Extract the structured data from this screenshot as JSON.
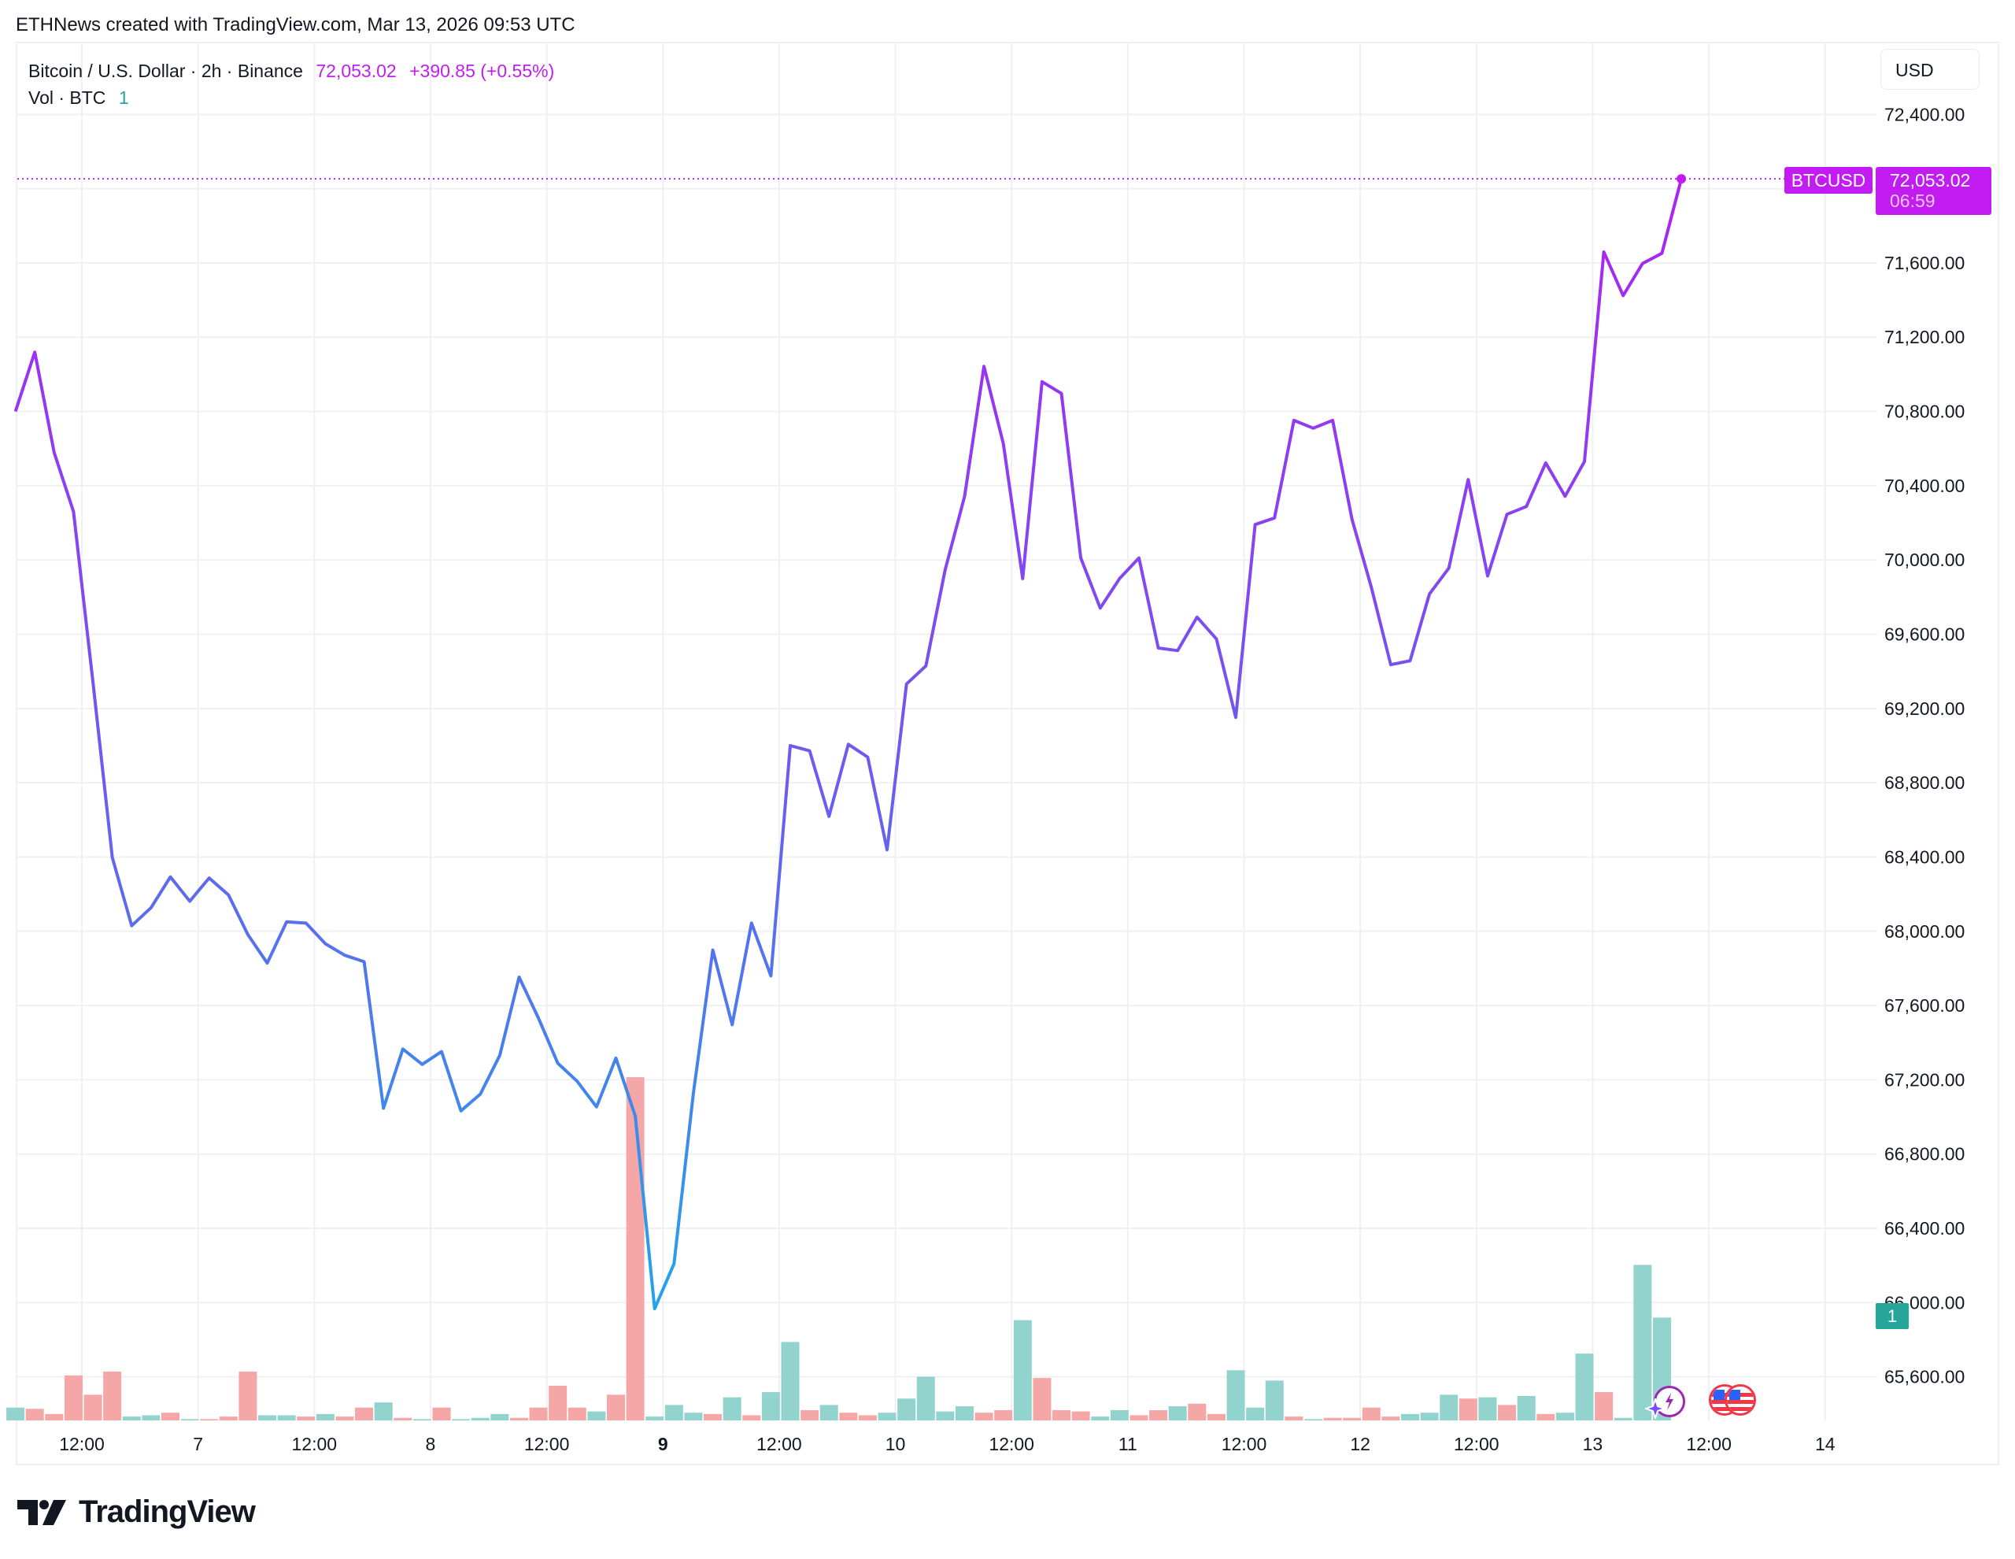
{
  "credit": "ETHNews created with TradingView.com, Mar 13, 2026 09:53 UTC",
  "legend": {
    "symbol": "Bitcoin / U.S. Dollar · 2h · Binance",
    "last": "72,053.02",
    "change": "+390.85 (+0.55%)",
    "volume_label": "Vol · BTC",
    "volume_value": "1"
  },
  "price_axis": {
    "currency_button": "USD",
    "ticks": [
      "72,400.00",
      "71,600.00",
      "71,200.00",
      "70,800.00",
      "70,400.00",
      "70,000.00",
      "69,600.00",
      "69,200.00",
      "68,800.00",
      "68,400.00",
      "68,000.00",
      "67,600.00",
      "67,200.00",
      "66,800.00",
      "66,400.00",
      "66,000.00",
      "65,600.00"
    ],
    "tick_values": [
      72400,
      71600,
      71200,
      70800,
      70400,
      70000,
      69600,
      69200,
      68800,
      68400,
      68000,
      67600,
      67200,
      66800,
      66400,
      66000,
      65600
    ]
  },
  "price_tag": {
    "symbol": "BTCUSD",
    "price": "72,053.02",
    "countdown": "06:59"
  },
  "volume_badge": "1",
  "time_axis": {
    "labels": [
      "12:00",
      "7",
      "12:00",
      "8",
      "12:00",
      "9",
      "12:00",
      "10",
      "12:00",
      "11",
      "12:00",
      "12",
      "12:00",
      "13",
      "12:00",
      "14"
    ],
    "bold": [
      "9"
    ]
  },
  "events": [
    "ai-insight-icon",
    "us-flag-event-icon",
    "us-flag-event-icon"
  ],
  "brand": "TradingView",
  "colors": {
    "line_start": "#b31cf2",
    "line_mid": "#1fa8e8",
    "accent": "#c21cf2",
    "vol_up": "#92d3cd",
    "vol_down": "#f5a6a6",
    "grid": "#f0f0f3"
  },
  "chart_data": {
    "type": "line",
    "title": "Bitcoin / U.S. Dollar · 2h · Binance",
    "xlabel": "",
    "ylabel": "USD",
    "ylim": [
      65400,
      72700
    ],
    "grid": true,
    "x_tick_labels": [
      "12:00",
      "7",
      "12:00",
      "8",
      "12:00",
      "9",
      "12:00",
      "10",
      "12:00",
      "11",
      "12:00",
      "12",
      "12:00",
      "13",
      "12:00",
      "14"
    ],
    "series": [
      {
        "name": "BTCUSD close",
        "values": [
          70800,
          71119,
          70579,
          70260,
          69346,
          68397,
          68030,
          68127,
          68293,
          68162,
          68287,
          68196,
          67982,
          67829,
          68051,
          68044,
          67933,
          67871,
          67836,
          67047,
          67366,
          67283,
          67352,
          67033,
          67123,
          67331,
          67753,
          67532,
          67289,
          67192,
          67054,
          67317,
          67005,
          65967,
          66209,
          67130,
          67899,
          67497,
          68044,
          67760,
          69000,
          68972,
          68619,
          69007,
          68938,
          68439,
          69332,
          69429,
          69949,
          70343,
          71043,
          70627,
          69900,
          70960,
          70897,
          70011,
          69741,
          69900,
          70011,
          69526,
          69512,
          69692,
          69575,
          69152,
          70191,
          70226,
          70752,
          70710,
          70752,
          70219,
          69852,
          69436,
          69457,
          69817,
          69956,
          70433,
          69914,
          70246,
          70288,
          70523,
          70343,
          70530,
          71659,
          71424,
          71597,
          71652,
          72053
        ]
      },
      {
        "name": "Volume (relative)",
        "values": [
          10,
          9,
          5,
          35,
          20,
          38,
          3,
          4,
          6,
          1,
          1,
          3,
          38,
          4,
          4,
          3,
          5,
          3,
          10,
          14,
          2,
          1,
          10,
          1,
          2,
          5,
          2,
          10,
          27,
          10,
          7,
          20,
          267,
          3,
          12,
          6,
          5,
          18,
          4,
          22,
          61,
          8,
          12,
          6,
          4,
          6,
          17,
          34,
          7,
          11,
          6,
          8,
          78,
          33,
          8,
          7,
          3,
          8,
          4,
          8,
          11,
          13,
          5,
          39,
          10,
          31,
          3,
          1,
          2,
          2,
          10,
          3,
          5,
          6,
          20,
          17,
          18,
          12,
          19,
          5,
          6,
          52,
          22,
          2,
          121,
          80,
          0
        ],
        "directions": [
          "g",
          "r",
          "r",
          "r",
          "r",
          "r",
          "g",
          "g",
          "r",
          "g",
          "r",
          "r",
          "r",
          "g",
          "g",
          "r",
          "g",
          "r",
          "r",
          "g",
          "r",
          "g",
          "r",
          "g",
          "g",
          "g",
          "r",
          "r",
          "r",
          "r",
          "g",
          "r",
          "r",
          "g",
          "g",
          "g",
          "r",
          "g",
          "r",
          "g",
          "g",
          "r",
          "g",
          "r",
          "r",
          "g",
          "g",
          "g",
          "g",
          "g",
          "r",
          "r",
          "g",
          "r",
          "r",
          "r",
          "g",
          "g",
          "r",
          "r",
          "g",
          "r",
          "r",
          "g",
          "g",
          "g",
          "r",
          "g",
          "r",
          "r",
          "r",
          "r",
          "g",
          "g",
          "g",
          "r",
          "g",
          "r",
          "g",
          "r",
          "g",
          "g",
          "r",
          "g",
          "g",
          "g",
          "g"
        ]
      }
    ],
    "last_price": 72053.02,
    "change": 390.85,
    "change_pct": 0.55
  }
}
